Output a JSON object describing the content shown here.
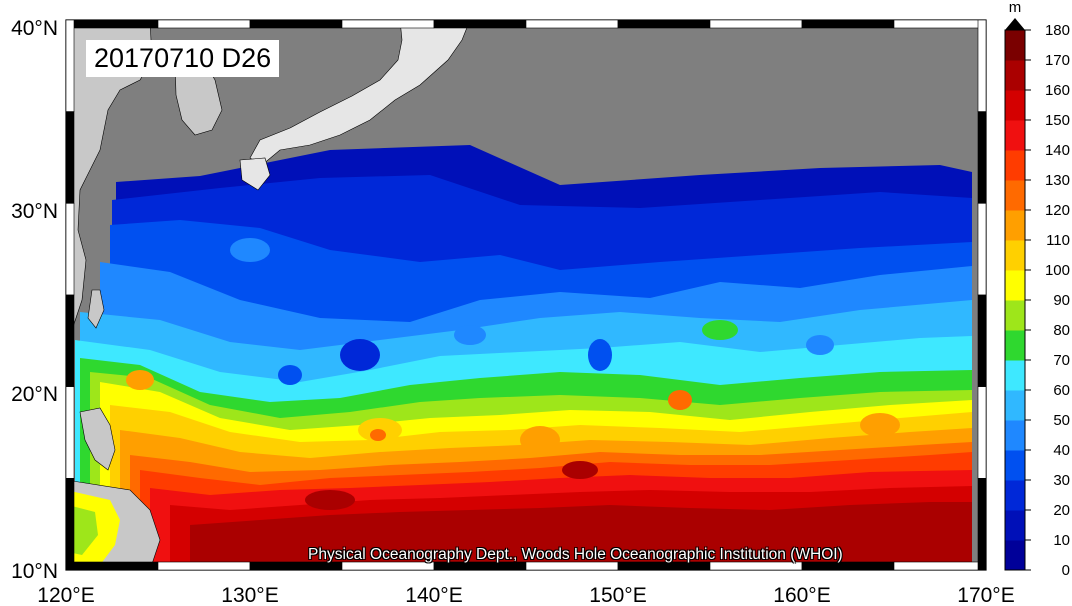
{
  "title": "20170710 D26",
  "credit": "Physical Oceanography Dept., Woods Hole Oceanographic Institution (WHOI)",
  "axes": {
    "lon_ticks": [
      "120°E",
      "130°E",
      "140°E",
      "150°E",
      "160°E",
      "170°E"
    ],
    "lat_ticks": [
      "40°N",
      "30°N",
      "20°N",
      "10°N"
    ]
  },
  "colorbar": {
    "unit": "m",
    "ticks": [
      "180",
      "170",
      "160",
      "150",
      "140",
      "130",
      "120",
      "110",
      "100",
      "90",
      "80",
      "70",
      "60",
      "50",
      "40",
      "30",
      "20",
      "10",
      "0"
    ],
    "colors": [
      "#000099",
      "#0010b8",
      "#0028d8",
      "#0050f0",
      "#1f88ff",
      "#30b8ff",
      "#3ee8ff",
      "#2fd82f",
      "#9ee61a",
      "#ffff00",
      "#ffd000",
      "#ff9f00",
      "#ff6a00",
      "#ff3c00",
      "#f01010",
      "#d40000",
      "#aa0000",
      "#7a0000",
      "#470000"
    ]
  },
  "map": {
    "lon_range": [
      120,
      170
    ],
    "lat_range": [
      10,
      40
    ],
    "land_color": "#c8c8c8",
    "masked_color": "#7f7f7f"
  }
}
